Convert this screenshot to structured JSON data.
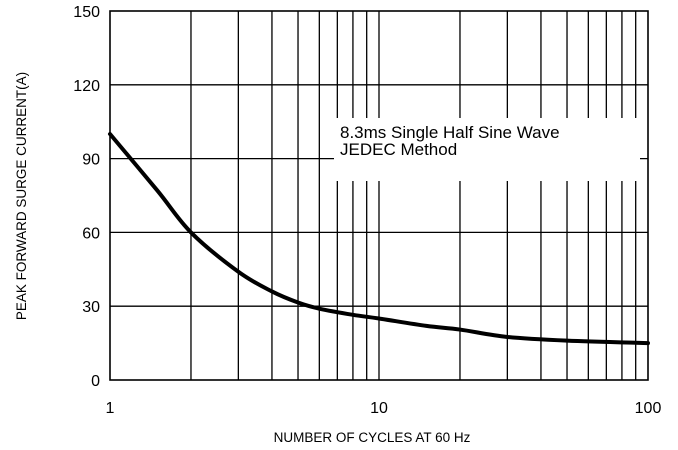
{
  "chart_data": {
    "type": "line",
    "xscale": "log",
    "xlim": [
      1,
      100
    ],
    "ylim": [
      0,
      150
    ],
    "grid": true,
    "xlabel": "NUMBER OF CYCLES AT 60 Hz",
    "ylabel": "PEAK FORWARD SURGE CURRENT(A)",
    "x_tick_labels": [
      "1",
      "10",
      "100"
    ],
    "y_tick_labels": [
      "0",
      "30",
      "60",
      "90",
      "120",
      "150"
    ],
    "annotation": [
      "8.3ms Single Half Sine Wave",
      "JEDEC Method"
    ],
    "series": [
      {
        "x": [
          1,
          1.5,
          2,
          3,
          4,
          5,
          6,
          8,
          10,
          15,
          20,
          30,
          50,
          100
        ],
        "y": [
          100,
          77,
          60,
          44,
          36,
          31.5,
          29,
          26.5,
          25,
          22,
          20.5,
          17.5,
          16,
          15
        ]
      }
    ]
  }
}
